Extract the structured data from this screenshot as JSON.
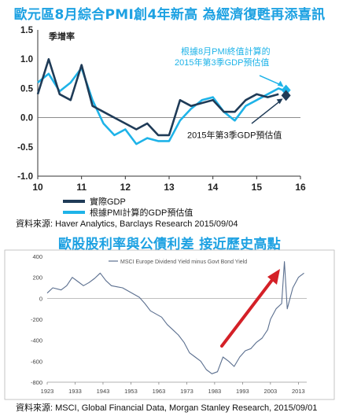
{
  "top_title": "歐元區8月綜合PMI創4年新高  為經濟復甦再添喜訊",
  "top_source": "資料來源: Haver Analytics, Barclays Research  2015/09/04",
  "bottom_title": "歐股股利率與公債利差  接近歷史高點",
  "bottom_source": "資料來源: MSCI, Global Financial Data, Morgan Stanley Research, 2015/09/01",
  "colors": {
    "title": "#1da1e2",
    "actual": "#1f3b57",
    "estimate": "#1eb3e8",
    "arrow": "#d42027",
    "msci": "#5b6f8f"
  },
  "chart_data": [
    {
      "type": "line",
      "ylabel": "季增率",
      "x_ticks": [
        "10",
        "11",
        "12",
        "13",
        "14",
        "15",
        "16"
      ],
      "y_ticks": [
        "1.5",
        "1.0",
        "0.5",
        "0.0",
        "-0.5",
        "-1.0"
      ],
      "xlim": [
        10,
        16
      ],
      "ylim": [
        -1.0,
        1.5
      ],
      "annotation_estimate": [
        "根據8月PMI終值計算的",
        "2015年第3季GDP預估值"
      ],
      "annotation_actual": "2015年第3季GDP預估值",
      "legend": [
        "實際GDP",
        "根據PMI計算的GDP預估值"
      ],
      "series": [
        {
          "name": "實際GDP",
          "x": [
            10.0,
            10.25,
            10.5,
            10.75,
            11.0,
            11.25,
            11.5,
            11.75,
            12.0,
            12.25,
            12.5,
            12.75,
            13.0,
            13.25,
            13.5,
            13.75,
            14.0,
            14.25,
            14.5,
            14.75,
            15.0,
            15.25,
            15.5
          ],
          "y": [
            0.4,
            1.0,
            0.4,
            0.3,
            0.9,
            0.2,
            0.1,
            0.0,
            -0.1,
            -0.2,
            -0.1,
            -0.3,
            -0.3,
            0.3,
            0.2,
            0.25,
            0.3,
            0.1,
            0.1,
            0.3,
            0.4,
            0.35,
            0.4
          ]
        },
        {
          "name": "根據PMI計算的GDP預估值",
          "x": [
            10.0,
            10.25,
            10.5,
            10.75,
            11.0,
            11.25,
            11.5,
            11.75,
            12.0,
            12.25,
            12.5,
            12.75,
            13.0,
            13.25,
            13.5,
            13.75,
            14.0,
            14.25,
            14.5,
            14.75,
            15.0,
            15.25,
            15.5,
            15.67
          ],
          "y": [
            0.6,
            0.75,
            0.45,
            0.6,
            0.85,
            0.3,
            -0.1,
            -0.3,
            -0.2,
            -0.45,
            -0.35,
            -0.4,
            -0.4,
            -0.05,
            0.15,
            0.3,
            0.35,
            0.1,
            -0.05,
            0.2,
            0.3,
            0.4,
            0.5,
            0.45
          ]
        }
      ],
      "marker_actual": {
        "x": 15.67,
        "y": 0.38
      },
      "marker_estimate": {
        "x": 15.67,
        "y": 0.47
      }
    },
    {
      "type": "line",
      "legend": [
        "MSCI Europe Dividend Yield minus Govt Bond Yield"
      ],
      "x_ticks": [
        "1923",
        "1933",
        "1943",
        "1953",
        "1963",
        "1973",
        "1983",
        "1993",
        "2003",
        "2013"
      ],
      "y_ticks": [
        "400",
        "200",
        "0",
        "-200",
        "-400",
        "-600",
        "-800"
      ],
      "xlim": [
        1923,
        2016
      ],
      "ylim": [
        -800,
        400
      ],
      "series": [
        {
          "name": "MSCI Europe Dividend Yield minus Govt Bond Yield",
          "x": [
            1923,
            1925,
            1928,
            1930,
            1932,
            1934,
            1936,
            1938,
            1940,
            1942,
            1944,
            1946,
            1948,
            1950,
            1952,
            1954,
            1956,
            1958,
            1960,
            1962,
            1964,
            1966,
            1968,
            1970,
            1972,
            1974,
            1976,
            1978,
            1980,
            1982,
            1984,
            1986,
            1988,
            1990,
            1992,
            1994,
            1996,
            1998,
            2000,
            2002,
            2003,
            2005,
            2007,
            2008,
            2009,
            2011,
            2013,
            2015
          ],
          "y": [
            50,
            100,
            80,
            120,
            200,
            160,
            120,
            150,
            190,
            240,
            170,
            120,
            110,
            100,
            70,
            40,
            10,
            -50,
            -120,
            -150,
            -180,
            -250,
            -300,
            -350,
            -420,
            -520,
            -560,
            -600,
            -680,
            -720,
            -700,
            -560,
            -600,
            -650,
            -560,
            -500,
            -480,
            -420,
            -380,
            -300,
            -200,
            -100,
            -50,
            350,
            -100,
            100,
            200,
            240
          ]
        }
      ]
    }
  ]
}
